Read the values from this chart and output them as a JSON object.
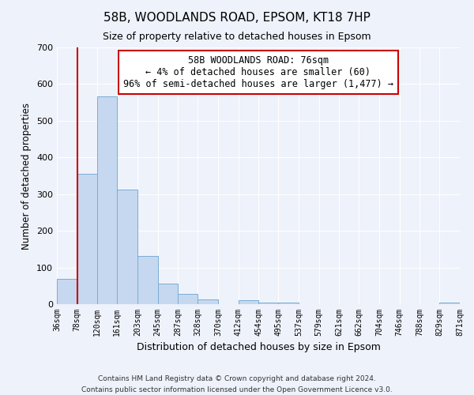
{
  "title": "58B, WOODLANDS ROAD, EPSOM, KT18 7HP",
  "subtitle": "Size of property relative to detached houses in Epsom",
  "xlabel": "Distribution of detached houses by size in Epsom",
  "ylabel": "Number of detached properties",
  "bar_color": "#c5d8f0",
  "bar_edge_color": "#7aadd4",
  "background_color": "#eef2fb",
  "grid_color": "#ffffff",
  "annotation_box_color": "#cc0000",
  "annotation_text": "58B WOODLANDS ROAD: 76sqm\n← 4% of detached houses are smaller (60)\n96% of semi-detached houses are larger (1,477) →",
  "red_line_x": 78,
  "ylim": [
    0,
    700
  ],
  "yticks": [
    0,
    100,
    200,
    300,
    400,
    500,
    600,
    700
  ],
  "bin_edges": [
    36,
    78,
    120,
    161,
    203,
    245,
    287,
    328,
    370,
    412,
    454,
    495,
    537,
    579,
    621,
    662,
    704,
    746,
    788,
    829,
    871
  ],
  "bin_heights": [
    68,
    355,
    567,
    312,
    131,
    57,
    27,
    14,
    0,
    10,
    5,
    5,
    0,
    0,
    0,
    0,
    0,
    0,
    0,
    5
  ],
  "footer_line1": "Contains HM Land Registry data © Crown copyright and database right 2024.",
  "footer_line2": "Contains public sector information licensed under the Open Government Licence v3.0."
}
